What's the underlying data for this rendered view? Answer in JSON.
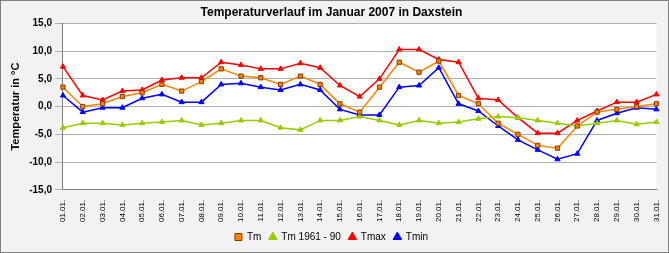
{
  "chart_data": {
    "type": "line",
    "title": "Temperaturverlauf im Januar 2007 in Daxstein",
    "y_label": "Temperatur in °C",
    "categories": [
      "01.01.",
      "02.01.",
      "03.01.",
      "04.01.",
      "05.01.",
      "06.01.",
      "07.01.",
      "08.01.",
      "09.01.",
      "10.01.",
      "11.01.",
      "12.01.",
      "13.01.",
      "14.01.",
      "15.01.",
      "16.01.",
      "17.01.",
      "18.01.",
      "19.01.",
      "20.01.",
      "21.01.",
      "22.01.",
      "23.01.",
      "24.01.",
      "25.01.",
      "26.01.",
      "27.01.",
      "28.01.",
      "29.01.",
      "30.01.",
      "31.01."
    ],
    "series": [
      {
        "name": "Tm",
        "color": "#ff8000",
        "marker": "square",
        "values": [
          3.5,
          0,
          0.5,
          1.8,
          2.5,
          4,
          2.8,
          4.5,
          6.8,
          5.5,
          5.2,
          4,
          5.5,
          4,
          0.5,
          -1,
          3.5,
          8,
          6.2,
          8.2,
          2,
          0.5,
          -3,
          -5,
          -7,
          -7.5,
          -3.5,
          -1,
          -0.5,
          0,
          0.5
        ]
      },
      {
        "name": "Tm 1961 - 90",
        "color": "#99cc00",
        "marker": "triangle",
        "values": [
          -3.8,
          -3,
          -3,
          -3.3,
          -3,
          -2.8,
          -2.5,
          -3.3,
          -3,
          -2.5,
          -2.5,
          -3.8,
          -4.2,
          -2.5,
          -2.5,
          -1.8,
          -2.5,
          -3.3,
          -2.5,
          -3,
          -2.8,
          -2.2,
          -1.8,
          -2,
          -2.5,
          -3,
          -3.5,
          -3,
          -2.5,
          -3.2,
          -2.8
        ]
      },
      {
        "name": "Tmax",
        "color": "#ff0000",
        "marker": "triangle",
        "values": [
          7.2,
          2,
          1.2,
          2.8,
          3,
          4.8,
          5.2,
          5.2,
          8,
          7.5,
          6.8,
          6.8,
          7.8,
          7,
          3.8,
          1.8,
          5,
          10.3,
          10.3,
          8.5,
          8,
          1.5,
          1.2,
          -2,
          -4.8,
          -4.8,
          -2.5,
          -0.8,
          0.8,
          0.8,
          2.2
        ]
      },
      {
        "name": "Tmin",
        "color": "#0000ff",
        "marker": "triangle",
        "values": [
          2,
          -1,
          -0.2,
          -0.2,
          1.5,
          2.2,
          0.8,
          0.8,
          4,
          4.2,
          3.5,
          3,
          4,
          3,
          -0.5,
          -1.5,
          -1.5,
          3.5,
          3.8,
          7,
          0.5,
          -0.8,
          -3.5,
          -6,
          -7.8,
          -9.5,
          -8.5,
          -2.5,
          -1.2,
          -0.2,
          -0.5
        ]
      }
    ],
    "ylim": [
      -15,
      15
    ],
    "yticks": [
      {
        "value": -15,
        "label": "-15,0"
      },
      {
        "value": -10,
        "label": "-10,0"
      },
      {
        "value": -5,
        "label": "-5,0"
      },
      {
        "value": 0,
        "label": "0,0"
      },
      {
        "value": 5,
        "label": "5,0"
      },
      {
        "value": 10,
        "label": "10,0"
      },
      {
        "value": 15,
        "label": "15,0"
      }
    ],
    "grid": true,
    "legend": "bottom"
  }
}
